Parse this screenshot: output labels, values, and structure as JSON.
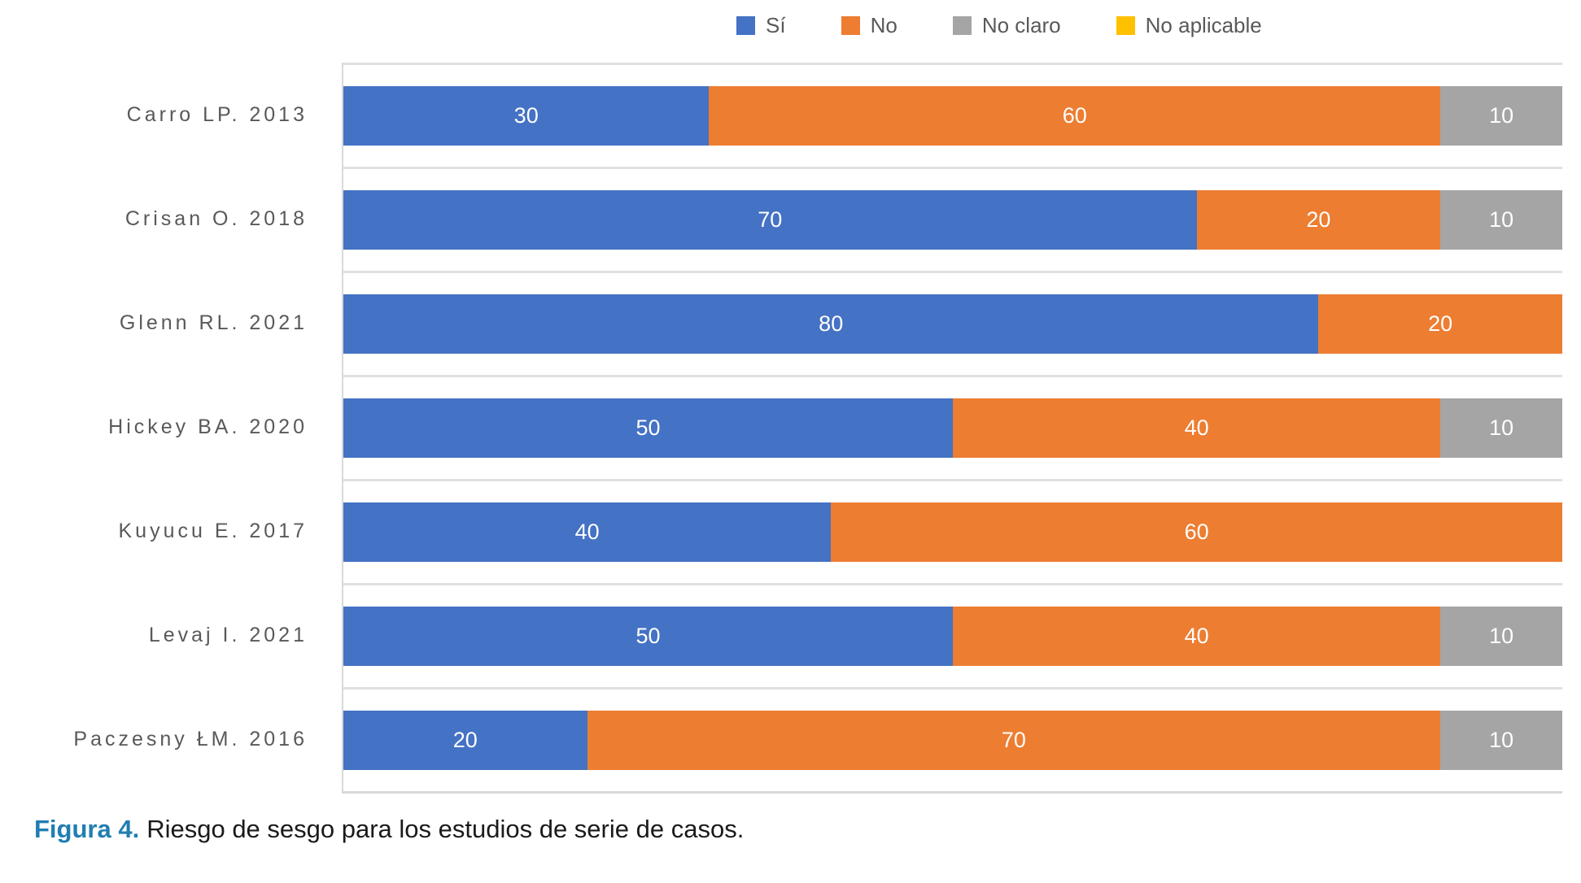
{
  "legend": {
    "items": [
      {
        "label": "Sí",
        "color": "#4472C4"
      },
      {
        "label": "No",
        "color": "#ED7D31"
      },
      {
        "label": "No claro",
        "color": "#A5A5A5"
      },
      {
        "label": "No aplicable",
        "color": "#FFC000"
      }
    ]
  },
  "caption": {
    "label": "Figura 4.",
    "text": "Riesgo de sesgo para los estudios de serie de casos.",
    "label_color": "#1F7EB2"
  },
  "chart_data": {
    "type": "bar",
    "orientation": "horizontal",
    "stacked": true,
    "categories": [
      "Carro LP. 2013",
      "Crisan O. 2018",
      "Glenn RL. 2021",
      "Hickey BA. 2020",
      "Kuyucu E. 2017",
      "Levaj I. 2021",
      "Paczesny ŁM. 2016"
    ],
    "series": [
      {
        "name": "Sí",
        "color": "#4472C4",
        "values": [
          30,
          70,
          80,
          50,
          40,
          50,
          20
        ]
      },
      {
        "name": "No",
        "color": "#ED7D31",
        "values": [
          60,
          20,
          20,
          40,
          60,
          40,
          70
        ]
      },
      {
        "name": "No claro",
        "color": "#A5A5A5",
        "values": [
          10,
          10,
          0,
          10,
          0,
          10,
          10
        ]
      },
      {
        "name": "No aplicable",
        "color": "#FFC000",
        "values": [
          0,
          0,
          0,
          0,
          0,
          0,
          0
        ]
      }
    ],
    "xlim": [
      0,
      100
    ],
    "value_labels": true,
    "legend_position": "top",
    "gridlines": "category-separators",
    "grid_color": "#E0E0E0",
    "axis_color": "#D9D9D9",
    "text_color": "#595959"
  }
}
